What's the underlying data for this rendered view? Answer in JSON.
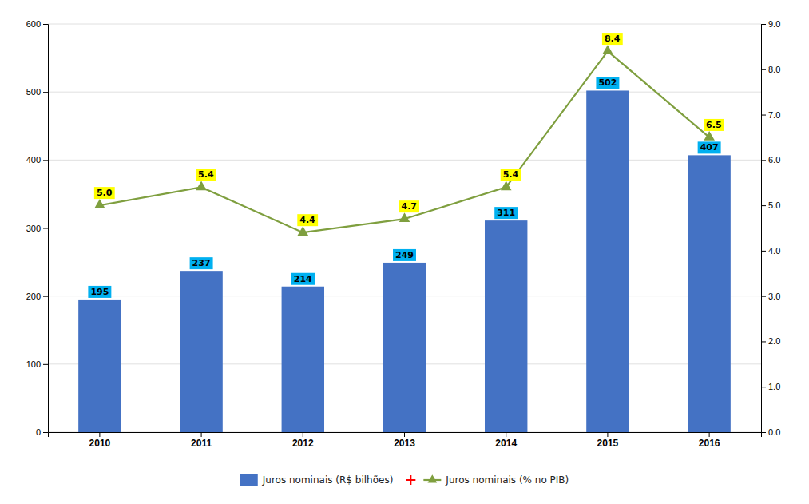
{
  "chart_data": {
    "type": "bar",
    "categories": [
      "2010",
      "2011",
      "2012",
      "2013",
      "2014",
      "2015",
      "2016"
    ],
    "series": [
      {
        "name": "Juros nominais (R$ bilhões)",
        "type": "bar",
        "color": "#4472C4",
        "values": [
          195,
          237,
          214,
          249,
          311,
          502,
          407
        ]
      },
      {
        "name": "Juros nominais (% no PIB)",
        "type": "line",
        "color": "#7F9F3F",
        "marker": "triangle",
        "axis": "y2",
        "values": [
          5.0,
          5.4,
          4.4,
          4.7,
          5.4,
          8.4,
          6.5
        ],
        "value_labels": [
          "5.0",
          "5.4",
          "4.4",
          "4.7",
          "5.4",
          "8.4",
          "6.5"
        ]
      }
    ],
    "ylim": [
      0,
      600
    ],
    "yticks": [
      0,
      100,
      200,
      300,
      400,
      500,
      600
    ],
    "y2lim": [
      0,
      9
    ],
    "y2ticks": [
      {
        "value": 0,
        "label": "0.0"
      },
      {
        "value": 1,
        "label": "1.0"
      },
      {
        "value": 2,
        "label": "2.0"
      },
      {
        "value": 3,
        "label": "3.0"
      },
      {
        "value": 4,
        "label": "4.0"
      },
      {
        "value": 5,
        "label": "5.0"
      },
      {
        "value": 6,
        "label": "6.0"
      },
      {
        "value": 7,
        "label": "7.0"
      },
      {
        "value": 8,
        "label": "8.0"
      },
      {
        "value": 9,
        "label": "9.0"
      }
    ],
    "grid": true,
    "data_labels": true,
    "legend": "bottom"
  }
}
